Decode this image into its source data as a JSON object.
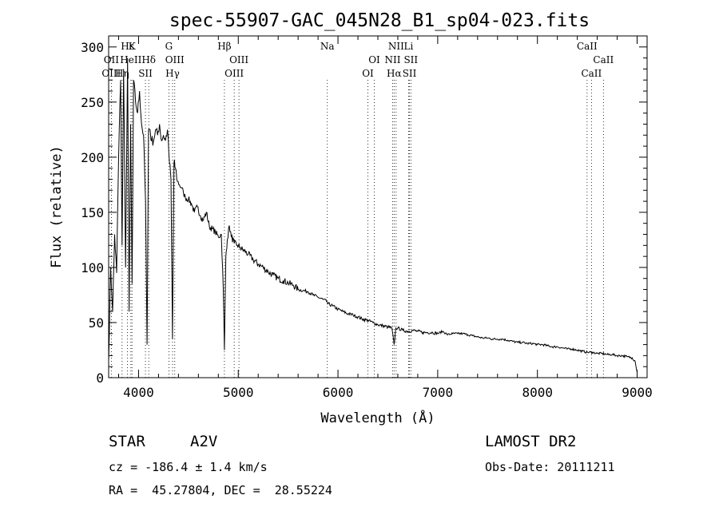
{
  "chart_data": {
    "type": "line",
    "title": "spec-55907-GAC_045N28_B1_sp04-023.fits",
    "xlabel": "Wavelength (Å)",
    "ylabel": "Flux (relative)",
    "xlim": [
      3700,
      9100
    ],
    "ylim": [
      0,
      310
    ],
    "x_ticks": [
      4000,
      5000,
      6000,
      7000,
      8000,
      9000
    ],
    "y_ticks": [
      0,
      50,
      100,
      150,
      200,
      250,
      300
    ],
    "grid": false,
    "series": [
      {
        "x": [
          3700,
          3720,
          3740,
          3760,
          3780,
          3800,
          3820,
          3835,
          3850,
          3870,
          3890,
          3905,
          3920,
          3935,
          3950,
          3970,
          3990,
          4010,
          4030,
          4050,
          4070,
          4085,
          4100,
          4115,
          4130,
          4150,
          4170,
          4190,
          4210,
          4230,
          4250,
          4270,
          4290,
          4310,
          4325,
          4340,
          4355,
          4370,
          4390,
          4410,
          4430,
          4450,
          4470,
          4500,
          4530,
          4560,
          4590,
          4620,
          4650,
          4680,
          4710,
          4740,
          4770,
          4800,
          4830,
          4850,
          4861,
          4875,
          4890,
          4910,
          4930,
          4960,
          4990,
          5020,
          5060,
          5100,
          5150,
          5200,
          5250,
          5300,
          5350,
          5400,
          5450,
          5500,
          5550,
          5600,
          5650,
          5700,
          5750,
          5800,
          5850,
          5890,
          5900,
          5950,
          6000,
          6050,
          6100,
          6150,
          6200,
          6250,
          6300,
          6350,
          6400,
          6450,
          6500,
          6540,
          6563,
          6580,
          6600,
          6650,
          6700,
          6750,
          6800,
          6850,
          6900,
          6950,
          7000,
          7050,
          7100,
          7150,
          7200,
          7250,
          7300,
          7350,
          7400,
          7450,
          7500,
          7550,
          7600,
          7650,
          7700,
          7750,
          7800,
          7850,
          7900,
          7950,
          8000,
          8050,
          8100,
          8150,
          8200,
          8250,
          8300,
          8350,
          8400,
          8450,
          8500,
          8550,
          8600,
          8650,
          8700,
          8750,
          8800,
          8850,
          8900,
          8950,
          8980,
          9000
        ],
        "y": [
          15,
          100,
          60,
          130,
          95,
          200,
          270,
          120,
          280,
          100,
          290,
          60,
          230,
          85,
          270,
          250,
          240,
          260,
          230,
          220,
          160,
          30,
          225,
          225,
          215,
          215,
          225,
          220,
          230,
          215,
          220,
          215,
          225,
          195,
          180,
          35,
          195,
          190,
          178,
          175,
          172,
          168,
          163,
          162,
          158,
          150,
          155,
          147,
          143,
          150,
          137,
          135,
          132,
          128,
          130,
          80,
          25,
          110,
          125,
          138,
          128,
          122,
          120,
          118,
          115,
          112,
          107,
          103,
          100,
          96,
          93,
          90,
          88,
          86,
          84,
          80,
          79,
          78,
          75,
          73,
          71,
          69,
          67,
          65,
          62,
          60,
          58,
          57,
          55,
          53,
          52,
          50,
          48,
          47,
          46,
          45,
          30,
          45,
          45,
          43,
          42,
          43,
          42,
          41,
          41,
          41,
          40,
          42,
          39,
          40,
          40,
          40,
          39,
          38,
          37,
          36,
          36,
          35,
          35,
          35,
          34,
          33,
          32,
          32,
          31,
          31,
          30,
          30,
          29,
          28,
          28,
          27,
          26,
          26,
          25,
          24,
          23,
          23,
          22,
          22,
          21,
          21,
          20,
          20,
          19,
          18,
          15,
          5
        ]
      }
    ],
    "line_markers": [
      {
        "label": "Hε",
        "wl": 3889,
        "row": 1,
        "dx": 0
      },
      {
        "label": "K",
        "wl": 3934,
        "row": 1,
        "dx": 0
      },
      {
        "label": "HeII",
        "wl": 3923,
        "row": 2,
        "dx": 0
      },
      {
        "label": "OII",
        "wl": 3727,
        "row": 2,
        "dx": 0
      },
      {
        "label": "OIII",
        "wl": 3727,
        "row": 3,
        "dx": 0
      },
      {
        "label": "Hη",
        "wl": 3835,
        "row": 3,
        "dx": 0
      },
      {
        "label": "Hδ",
        "wl": 4102,
        "row": 2,
        "dx": 0
      },
      {
        "label": "SII",
        "wl": 4069,
        "row": 3,
        "dx": 0
      },
      {
        "label": "G",
        "wl": 4304,
        "row": 1,
        "dx": 0
      },
      {
        "label": "OIII",
        "wl": 4363,
        "row": 2,
        "dx": 0
      },
      {
        "label": "Hγ",
        "wl": 4341,
        "row": 3,
        "dx": 0
      },
      {
        "label": "Hβ",
        "wl": 4861,
        "row": 1,
        "dx": 0
      },
      {
        "label": "OIII",
        "wl": 5007,
        "row": 2,
        "dx": 0
      },
      {
        "label": "OIII",
        "wl": 4959,
        "row": 3,
        "dx": 0
      },
      {
        "label": "Na",
        "wl": 5893,
        "row": 1,
        "dx": 0
      },
      {
        "label": "OI",
        "wl": 6364,
        "row": 2,
        "dx": 0
      },
      {
        "label": "OI",
        "wl": 6300,
        "row": 3,
        "dx": 0
      },
      {
        "label": "NII",
        "wl": 6583,
        "row": 1,
        "dx": 0
      },
      {
        "label": "Li",
        "wl": 6708,
        "row": 1,
        "dx": 0
      },
      {
        "label": "NII",
        "wl": 6548,
        "row": 2,
        "dx": 0
      },
      {
        "label": "SII",
        "wl": 6731,
        "row": 2,
        "dx": 0
      },
      {
        "label": "Hα",
        "wl": 6563,
        "row": 3,
        "dx": 0
      },
      {
        "label": "SII",
        "wl": 6717,
        "row": 3,
        "dx": 0
      },
      {
        "label": "CaII",
        "wl": 8498,
        "row": 1,
        "dx": 0
      },
      {
        "label": "CaII",
        "wl": 8662,
        "row": 2,
        "dx": 0
      },
      {
        "label": "CaII",
        "wl": 8542,
        "row": 3,
        "dx": 0
      }
    ]
  },
  "info": {
    "class": "STAR",
    "subclass": "A2V",
    "survey": "LAMOST DR2",
    "velocity": "cz = -186.4 ± 1.4 km/s",
    "obs_date": "Obs-Date: 20111211",
    "coords": "RA =  45.27804, DEC =  28.55224"
  }
}
